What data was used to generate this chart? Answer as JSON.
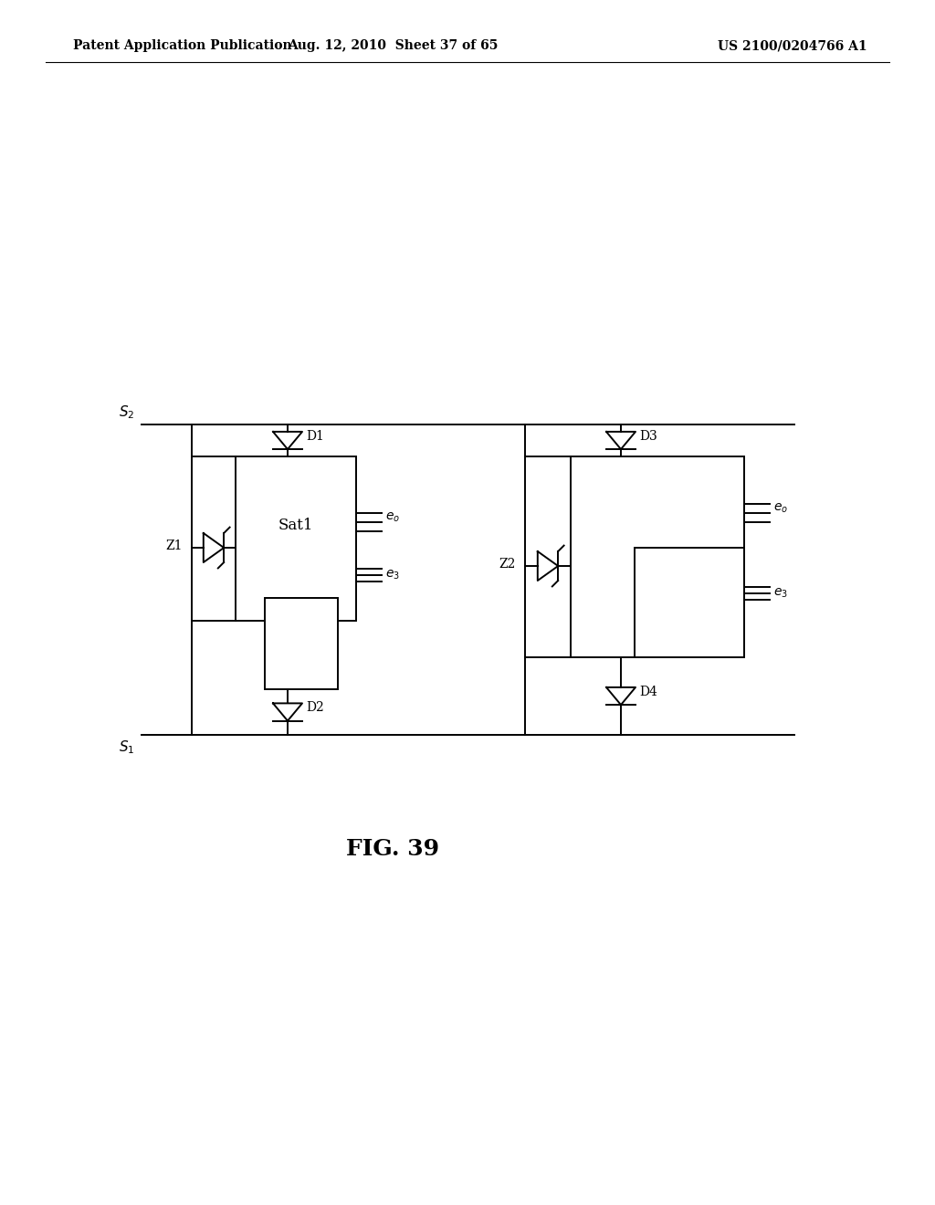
{
  "background_color": "#ffffff",
  "header_left": "Patent Application Publication",
  "header_mid": "Aug. 12, 2010  Sheet 37 of 65",
  "header_right": "US 2100/0204766 A1",
  "figure_label": "FIG. 39",
  "lw": 1.4
}
